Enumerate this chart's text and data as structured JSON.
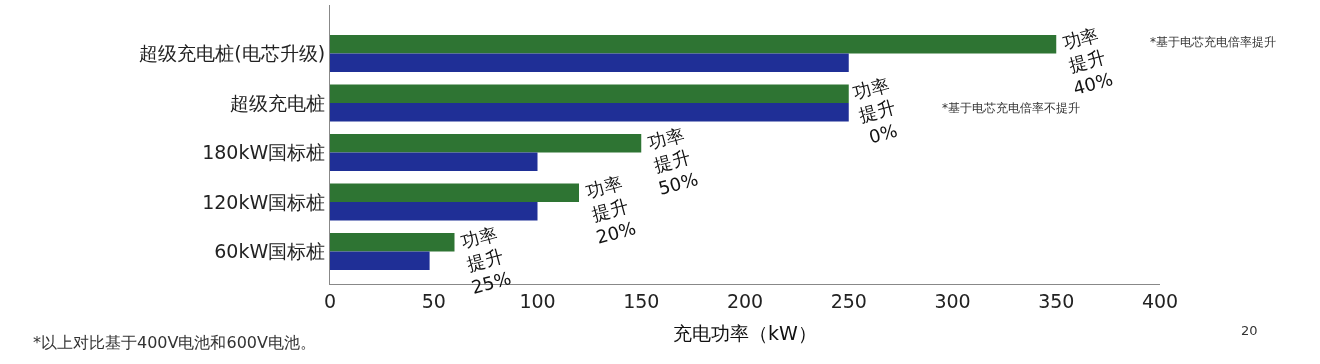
{
  "chart_data": {
    "type": "bar",
    "orientation": "horizontal",
    "categories": [
      "超级充电桩(电芯升级)",
      "超级充电桩",
      "180kW国标桩",
      "120kW国标桩",
      "60kW国标桩"
    ],
    "series": [
      {
        "color": "#2e7433",
        "values": [
          350,
          250,
          150,
          120,
          60
        ]
      },
      {
        "color": "#1f2f96",
        "values": [
          250,
          250,
          100,
          100,
          48
        ]
      }
    ],
    "xlabel": "充电功率（kW）",
    "xlim": [
      0,
      400
    ],
    "xticks": [
      0,
      50,
      100,
      150,
      200,
      250,
      300,
      350,
      400
    ],
    "annotations": [
      {
        "text": "功率提升40%",
        "x": 350,
        "y": "超级充电桩(电芯升级)"
      },
      {
        "text": "功率提升0%",
        "x": 250,
        "y": "超级充电桩"
      },
      {
        "text": "功率提升50%",
        "x": 150,
        "y": "180kW国标桩"
      },
      {
        "text": "功率提升20%",
        "x": 120,
        "y": "120kW国标桩"
      },
      {
        "text": "功率提升25%",
        "x": 60,
        "y": "60kW国标桩"
      },
      "*基于电芯充电倍率提升",
      "*基于电芯充电倍率不提升",
      "*以上对比基于400V电池和600V电池。",
      "20"
    ]
  }
}
